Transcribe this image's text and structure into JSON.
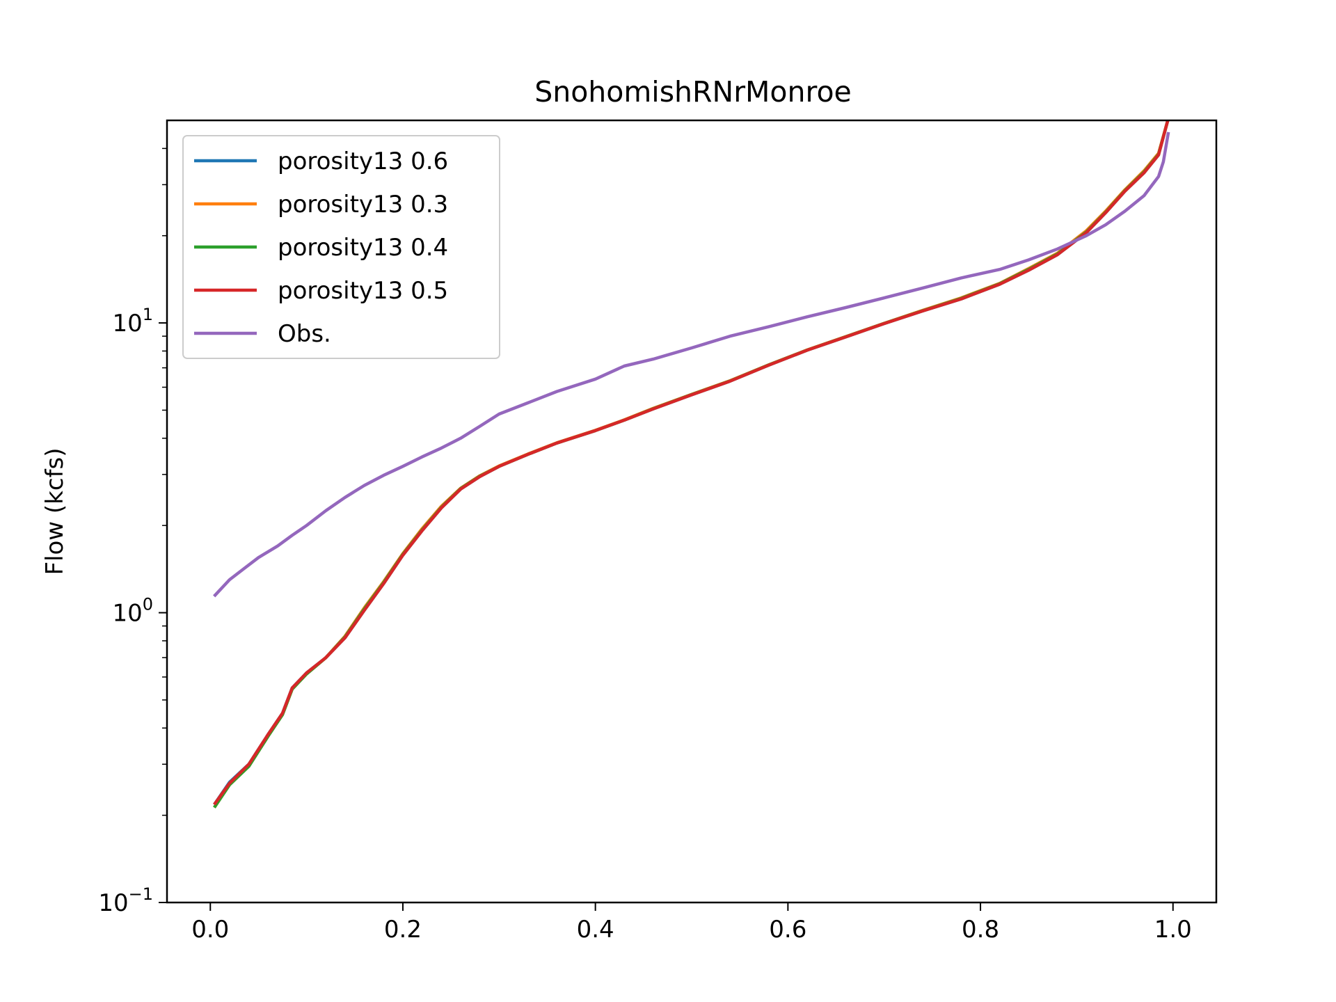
{
  "chart_data": {
    "type": "line",
    "title": "SnohomishRNrMonroe",
    "xlabel": "",
    "ylabel": "Flow (kcfs)",
    "xlim": [
      -0.045,
      1.045
    ],
    "ylim": [
      0.1,
      50
    ],
    "yscale": "log",
    "x_ticks": [
      0.0,
      0.2,
      0.4,
      0.6,
      0.8,
      1.0
    ],
    "x_tick_labels": [
      "0.0",
      "0.2",
      "0.4",
      "0.6",
      "0.8",
      "1.0"
    ],
    "y_ticks": [
      0.1,
      1,
      10
    ],
    "y_tick_labels": [
      {
        "base": "10",
        "exp": "−1"
      },
      {
        "base": "10",
        "exp": "0"
      },
      {
        "base": "10",
        "exp": "1"
      }
    ],
    "grid": false,
    "legend_position": "upper-left",
    "series": [
      {
        "name": "porosity13 0.6",
        "color": "#1f77b4",
        "x": [
          0.005,
          0.02,
          0.04,
          0.06,
          0.075,
          0.085,
          0.1,
          0.12,
          0.14,
          0.16,
          0.18,
          0.2,
          0.22,
          0.24,
          0.26,
          0.28,
          0.3,
          0.33,
          0.36,
          0.4,
          0.43,
          0.46,
          0.5,
          0.54,
          0.58,
          0.62,
          0.66,
          0.7,
          0.74,
          0.78,
          0.82,
          0.85,
          0.88,
          0.91,
          0.93,
          0.95,
          0.97,
          0.985,
          0.995
        ],
        "y": [
          0.22,
          0.26,
          0.3,
          0.38,
          0.45,
          0.55,
          0.62,
          0.7,
          0.82,
          1.02,
          1.26,
          1.58,
          1.92,
          2.3,
          2.67,
          2.95,
          3.2,
          3.52,
          3.85,
          4.25,
          4.62,
          5.05,
          5.65,
          6.3,
          7.15,
          8.05,
          8.95,
          9.95,
          11.0,
          12.1,
          13.6,
          15.2,
          17.2,
          20.5,
          24.0,
          28.5,
          33.0,
          38.0,
          52.0
        ]
      },
      {
        "name": "porosity13 0.3",
        "color": "#ff7f0e",
        "x": [
          0.005,
          0.02,
          0.04,
          0.06,
          0.075,
          0.085,
          0.1,
          0.12,
          0.14,
          0.16,
          0.18,
          0.2,
          0.22,
          0.24,
          0.26,
          0.28,
          0.3,
          0.33,
          0.36,
          0.4,
          0.43,
          0.46,
          0.5,
          0.54,
          0.58,
          0.62,
          0.66,
          0.7,
          0.74,
          0.78,
          0.82,
          0.85,
          0.88,
          0.91,
          0.93,
          0.95,
          0.97,
          0.985,
          0.995
        ],
        "y": [
          0.215,
          0.255,
          0.295,
          0.375,
          0.445,
          0.545,
          0.615,
          0.7,
          0.83,
          1.04,
          1.28,
          1.6,
          1.95,
          2.33,
          2.69,
          2.97,
          3.21,
          3.53,
          3.86,
          4.26,
          4.63,
          5.07,
          5.67,
          6.32,
          7.17,
          8.07,
          8.97,
          9.97,
          11.05,
          12.2,
          13.7,
          15.4,
          17.4,
          20.8,
          24.3,
          28.8,
          33.5,
          38.5,
          52.0
        ]
      },
      {
        "name": "porosity13 0.4",
        "color": "#2ca02c",
        "x": [
          0.005,
          0.02,
          0.04,
          0.06,
          0.075,
          0.085,
          0.1,
          0.12,
          0.14,
          0.16,
          0.18,
          0.2,
          0.22,
          0.24,
          0.26,
          0.28,
          0.3,
          0.33,
          0.36,
          0.4,
          0.43,
          0.46,
          0.5,
          0.54,
          0.58,
          0.62,
          0.66,
          0.7,
          0.74,
          0.78,
          0.82,
          0.85,
          0.88,
          0.91,
          0.93,
          0.95,
          0.97,
          0.985,
          0.995
        ],
        "y": [
          0.215,
          0.255,
          0.295,
          0.375,
          0.445,
          0.545,
          0.615,
          0.7,
          0.825,
          1.03,
          1.27,
          1.59,
          1.93,
          2.31,
          2.68,
          2.96,
          3.2,
          3.52,
          3.85,
          4.25,
          4.62,
          5.06,
          5.66,
          6.31,
          7.16,
          8.06,
          8.96,
          9.96,
          11.02,
          12.15,
          13.65,
          15.3,
          17.3,
          20.6,
          24.1,
          28.6,
          33.2,
          38.2,
          52.0
        ]
      },
      {
        "name": "porosity13 0.5",
        "color": "#d62728",
        "x": [
          0.005,
          0.02,
          0.04,
          0.06,
          0.075,
          0.085,
          0.1,
          0.12,
          0.14,
          0.16,
          0.18,
          0.2,
          0.22,
          0.24,
          0.26,
          0.28,
          0.3,
          0.33,
          0.36,
          0.4,
          0.43,
          0.46,
          0.5,
          0.54,
          0.58,
          0.62,
          0.66,
          0.7,
          0.74,
          0.78,
          0.82,
          0.85,
          0.88,
          0.91,
          0.93,
          0.95,
          0.97,
          0.985,
          0.995
        ],
        "y": [
          0.22,
          0.258,
          0.3,
          0.38,
          0.45,
          0.55,
          0.62,
          0.7,
          0.82,
          1.02,
          1.26,
          1.58,
          1.92,
          2.3,
          2.67,
          2.95,
          3.2,
          3.52,
          3.85,
          4.25,
          4.62,
          5.05,
          5.65,
          6.3,
          7.15,
          8.05,
          8.95,
          9.95,
          11.0,
          12.1,
          13.6,
          15.2,
          17.2,
          20.5,
          24.0,
          28.5,
          33.0,
          38.0,
          52.0
        ]
      },
      {
        "name": "Obs.",
        "color": "#9467bd",
        "x": [
          0.005,
          0.02,
          0.035,
          0.05,
          0.07,
          0.085,
          0.1,
          0.12,
          0.14,
          0.16,
          0.18,
          0.2,
          0.22,
          0.24,
          0.26,
          0.28,
          0.3,
          0.33,
          0.36,
          0.4,
          0.43,
          0.46,
          0.5,
          0.54,
          0.58,
          0.62,
          0.66,
          0.7,
          0.74,
          0.78,
          0.82,
          0.85,
          0.88,
          0.91,
          0.93,
          0.95,
          0.97,
          0.985,
          0.99,
          0.995
        ],
        "y": [
          1.15,
          1.3,
          1.42,
          1.55,
          1.7,
          1.85,
          2.0,
          2.25,
          2.5,
          2.75,
          2.98,
          3.2,
          3.45,
          3.7,
          4.0,
          4.4,
          4.85,
          5.3,
          5.8,
          6.4,
          7.1,
          7.5,
          8.2,
          9.0,
          9.7,
          10.5,
          11.3,
          12.2,
          13.2,
          14.3,
          15.3,
          16.5,
          18.0,
          20.0,
          21.8,
          24.3,
          27.5,
          32.0,
          36.0,
          45.0
        ]
      }
    ]
  }
}
